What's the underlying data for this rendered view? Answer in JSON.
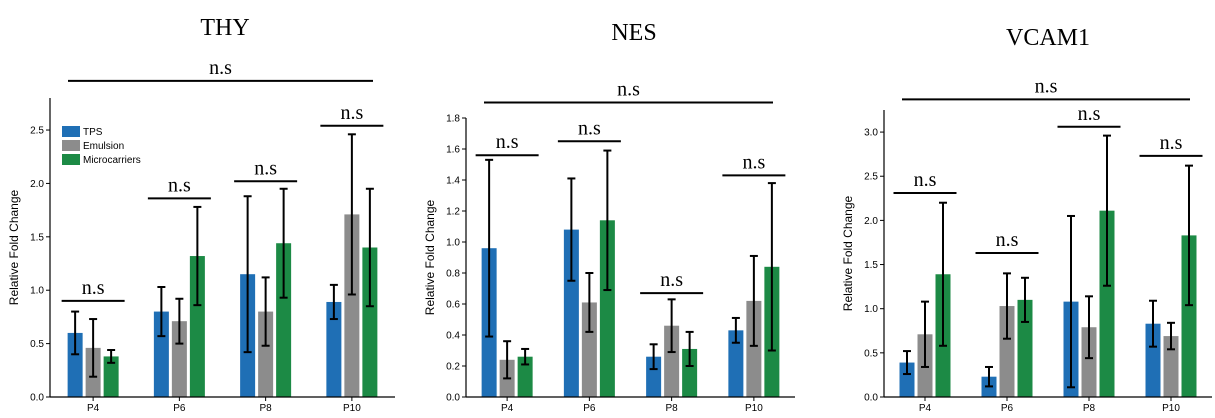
{
  "legend": {
    "placement": "top-left",
    "entries": [
      "TPS",
      "Emulsion",
      "Microcarriers"
    ]
  },
  "colors": {
    "TPS": "#1f6fb5",
    "Emulsion": "#8c8c8c",
    "Microcarriers": "#1c8a45",
    "axis": "#000000"
  },
  "chart_data": [
    {
      "type": "bar",
      "title": "THY",
      "ylabel": "Relative Fold Change",
      "xlabel": "",
      "categories": [
        "P4",
        "P6",
        "P8",
        "P10"
      ],
      "ylim": [
        0,
        2.8
      ],
      "yticks": [
        "0.0",
        "0.5",
        "1.0",
        "1.5",
        "2.0",
        "2.5"
      ],
      "tickvals": [
        0,
        0.5,
        1.0,
        1.5,
        2.0,
        2.5
      ],
      "series": [
        {
          "name": "TPS",
          "values": [
            0.6,
            0.8,
            1.15,
            0.89
          ],
          "err": [
            0.2,
            0.23,
            0.73,
            0.16
          ]
        },
        {
          "name": "Emulsion",
          "values": [
            0.46,
            0.71,
            0.8,
            1.71
          ],
          "err": [
            0.27,
            0.21,
            0.32,
            0.75
          ]
        },
        {
          "name": "Microcarriers",
          "values": [
            0.38,
            1.32,
            1.44,
            1.4
          ],
          "err": [
            0.06,
            0.46,
            0.51,
            0.55
          ]
        }
      ],
      "annotations": [
        {
          "label": "n.s",
          "span": [
            0,
            0
          ],
          "y": 0.9
        },
        {
          "label": "n.s",
          "span": [
            1,
            1
          ],
          "y": 1.86
        },
        {
          "label": "n.s",
          "span": [
            2,
            2
          ],
          "y": 2.02
        },
        {
          "label": "n.s",
          "span": [
            3,
            3
          ],
          "y": 2.54
        },
        {
          "label": "n.s",
          "span": [
            0,
            3
          ],
          "y": 2.96
        }
      ],
      "show_legend": true
    },
    {
      "type": "bar",
      "title": "NES",
      "ylabel": "Relative Fold Change",
      "xlabel": "",
      "categories": [
        "P4",
        "P6",
        "P8",
        "P10"
      ],
      "ylim": [
        0,
        1.8
      ],
      "yticks": [
        "0.0",
        "0.2",
        "0.4",
        "0.6",
        "0.8",
        "1.0",
        "1.2",
        "1.4",
        "1.6",
        "1.8"
      ],
      "tickvals": [
        0,
        0.2,
        0.4,
        0.6,
        0.8,
        1.0,
        1.2,
        1.4,
        1.6,
        1.8
      ],
      "series": [
        {
          "name": "TPS",
          "values": [
            0.96,
            1.08,
            0.26,
            0.43
          ],
          "err": [
            0.57,
            0.33,
            0.08,
            0.08
          ]
        },
        {
          "name": "Emulsion",
          "values": [
            0.24,
            0.61,
            0.46,
            0.62
          ],
          "err": [
            0.12,
            0.19,
            0.17,
            0.29
          ]
        },
        {
          "name": "Microcarriers",
          "values": [
            0.26,
            1.14,
            0.31,
            0.84
          ],
          "err": [
            0.05,
            0.45,
            0.11,
            0.54
          ]
        }
      ],
      "annotations": [
        {
          "label": "n.s",
          "span": [
            0,
            0
          ],
          "y": 1.56
        },
        {
          "label": "n.s",
          "span": [
            1,
            1
          ],
          "y": 1.65
        },
        {
          "label": "n.s",
          "span": [
            2,
            2
          ],
          "y": 0.67
        },
        {
          "label": "n.s",
          "span": [
            3,
            3
          ],
          "y": 1.43
        },
        {
          "label": "n.s",
          "span": [
            0,
            3
          ],
          "y": 1.9
        }
      ],
      "show_legend": false
    },
    {
      "type": "bar",
      "title": "VCAM1",
      "ylabel": "Relative Fold Change",
      "xlabel": "",
      "categories": [
        "P4",
        "P6",
        "P8",
        "P10"
      ],
      "ylim": [
        0,
        3.25
      ],
      "yticks": [
        "0.0",
        "0.5",
        "1.0",
        "1.5",
        "2.0",
        "2.5",
        "3.0"
      ],
      "tickvals": [
        0,
        0.5,
        1.0,
        1.5,
        2.0,
        2.5,
        3.0
      ],
      "series": [
        {
          "name": "TPS",
          "values": [
            0.39,
            0.23,
            1.08,
            0.83
          ],
          "err": [
            0.13,
            0.11,
            0.97,
            0.26
          ]
        },
        {
          "name": "Emulsion",
          "values": [
            0.71,
            1.03,
            0.79,
            0.69
          ],
          "err": [
            0.37,
            0.37,
            0.35,
            0.15
          ]
        },
        {
          "name": "Microcarriers",
          "values": [
            1.39,
            1.1,
            2.11,
            1.83
          ],
          "err": [
            0.81,
            0.25,
            0.85,
            0.79
          ]
        }
      ],
      "annotations": [
        {
          "label": "n.s",
          "span": [
            0,
            0
          ],
          "y": 2.31
        },
        {
          "label": "n.s",
          "span": [
            1,
            1
          ],
          "y": 1.63
        },
        {
          "label": "n.s",
          "span": [
            2,
            2
          ],
          "y": 3.06
        },
        {
          "label": "n.s",
          "span": [
            3,
            3
          ],
          "y": 2.73
        },
        {
          "label": "n.s",
          "span": [
            0,
            3
          ],
          "y": 3.37
        }
      ],
      "show_legend": false
    }
  ]
}
